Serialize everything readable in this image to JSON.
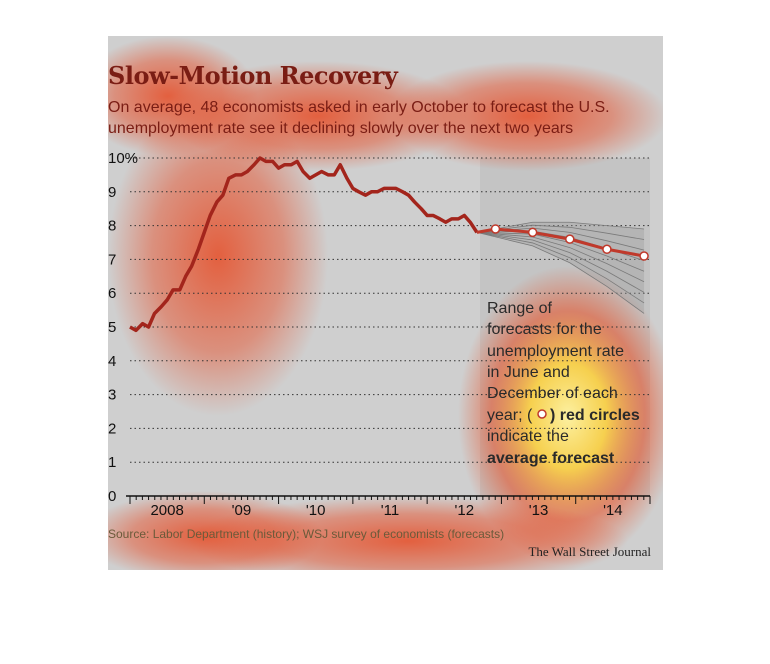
{
  "chart_data": {
    "type": "line",
    "title": "Slow-Motion Recovery",
    "subtitle_lines": [
      "On average, 48 economists asked in early October to forecast the U.S.",
      "unemployment rate see it declining slowly over the next two years"
    ],
    "y_ticks": [
      "10%",
      "9",
      "8",
      "7",
      "6",
      "5",
      "4",
      "3",
      "2",
      "1",
      "0"
    ],
    "ylim": [
      0,
      10
    ],
    "x_ticks": [
      "2008",
      "'09",
      "'10",
      "'11",
      "'12",
      "'13",
      "'14"
    ],
    "x_tick_years": [
      2008,
      2009,
      2010,
      2011,
      2012,
      2013,
      2014
    ],
    "xlim": [
      2008,
      2015
    ],
    "grid": true,
    "history": {
      "x": [
        2008.0,
        2008.08,
        2008.17,
        2008.25,
        2008.33,
        2008.42,
        2008.5,
        2008.58,
        2008.67,
        2008.75,
        2008.83,
        2008.92,
        2009.0,
        2009.08,
        2009.17,
        2009.25,
        2009.33,
        2009.42,
        2009.5,
        2009.58,
        2009.67,
        2009.75,
        2009.83,
        2009.92,
        2010.0,
        2010.08,
        2010.17,
        2010.25,
        2010.33,
        2010.42,
        2010.5,
        2010.58,
        2010.67,
        2010.75,
        2010.83,
        2010.92,
        2011.0,
        2011.08,
        2011.17,
        2011.25,
        2011.33,
        2011.42,
        2011.5,
        2011.58,
        2011.67,
        2011.75,
        2011.83,
        2011.92,
        2012.0,
        2012.08,
        2012.17,
        2012.25,
        2012.33,
        2012.42,
        2012.5,
        2012.58,
        2012.67
      ],
      "y": [
        5.0,
        4.9,
        5.1,
        5.0,
        5.4,
        5.6,
        5.8,
        6.1,
        6.1,
        6.5,
        6.8,
        7.3,
        7.8,
        8.3,
        8.7,
        8.9,
        9.4,
        9.5,
        9.5,
        9.6,
        9.8,
        10.0,
        9.9,
        9.9,
        9.7,
        9.8,
        9.8,
        9.9,
        9.6,
        9.4,
        9.5,
        9.6,
        9.5,
        9.5,
        9.8,
        9.4,
        9.1,
        9.0,
        8.9,
        9.0,
        9.0,
        9.1,
        9.1,
        9.1,
        9.0,
        8.9,
        8.7,
        8.5,
        8.3,
        8.3,
        8.2,
        8.1,
        8.2,
        8.2,
        8.3,
        8.1,
        7.8
      ],
      "color": "#a3251c"
    },
    "forecast_average": {
      "x": [
        2012.67,
        2012.92,
        2013.42,
        2013.92,
        2014.42,
        2014.92
      ],
      "y": [
        7.8,
        7.9,
        7.8,
        7.6,
        7.3,
        7.1
      ],
      "color": "#c0392b"
    },
    "forecast_band": {
      "x": [
        2012.67,
        2013.42,
        2013.92,
        2014.42,
        2014.92
      ],
      "high": [
        7.8,
        8.1,
        8.1,
        8.0,
        7.9
      ],
      "low": [
        7.8,
        7.4,
        6.9,
        6.2,
        5.4
      ],
      "color": "#7a7a7a"
    },
    "annotation_lines": [
      "Range of",
      "forecasts for the",
      "unemployment rate",
      "in June and",
      "December of each",
      "year; (",
      ") red circles",
      "indicate the",
      "average forecast"
    ],
    "source": "Source: Labor Department (history); WSJ survey of economists (forecasts)",
    "credit": "The Wall Street Journal"
  }
}
